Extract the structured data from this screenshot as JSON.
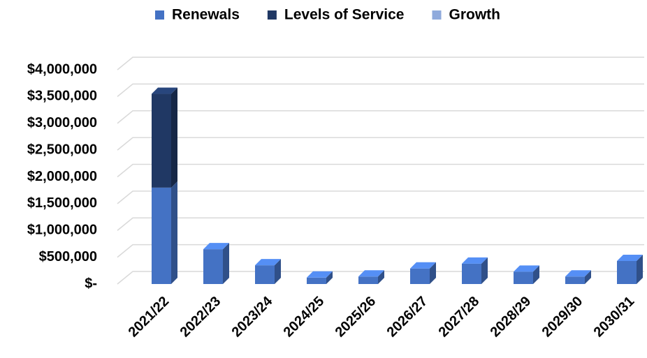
{
  "chart_data": {
    "type": "bar3d",
    "stacked": true,
    "categories": [
      "2021/22",
      "2022/23",
      "2023/24",
      "2024/25",
      "2025/26",
      "2026/27",
      "2027/28",
      "2028/29",
      "2029/30",
      "2030/31"
    ],
    "series": [
      {
        "name": "Renewals",
        "color": "#4472c4",
        "values": [
          1800000,
          650000,
          350000,
          120000,
          140000,
          290000,
          380000,
          230000,
          140000,
          430000
        ]
      },
      {
        "name": "Levels of Service",
        "color": "#203864",
        "values": [
          1750000,
          0,
          0,
          0,
          0,
          0,
          0,
          0,
          0,
          0
        ]
      },
      {
        "name": "Growth",
        "color": "#8faadc",
        "values": [
          0,
          0,
          0,
          0,
          0,
          0,
          0,
          0,
          0,
          0
        ]
      }
    ],
    "ylim": [
      0,
      4000000
    ],
    "yticks": [
      {
        "value": 0,
        "label": "$-"
      },
      {
        "value": 500000,
        "label": "$500,000"
      },
      {
        "value": 1000000,
        "label": "$1,000,000"
      },
      {
        "value": 1500000,
        "label": "$1,500,000"
      },
      {
        "value": 2000000,
        "label": "$2,000,000"
      },
      {
        "value": 2500000,
        "label": "$2,500,000"
      },
      {
        "value": 3000000,
        "label": "$3,000,000"
      },
      {
        "value": 3500000,
        "label": "$3,500,000"
      },
      {
        "value": 4000000,
        "label": "$4,000,000"
      }
    ],
    "grid": true,
    "legend": "top"
  }
}
